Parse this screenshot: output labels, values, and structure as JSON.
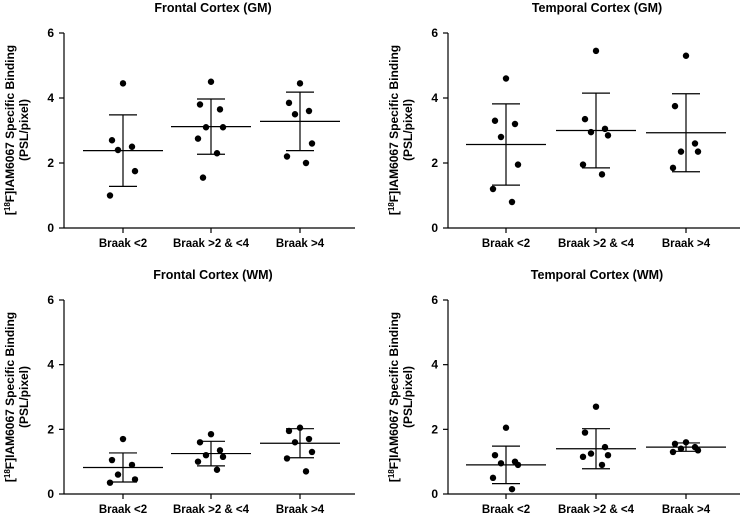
{
  "chart_data": [
    {
      "type": "scatter",
      "title": "Frontal Cortex (GM)",
      "ylabel": "[18F]IAM6067 Specific Binding",
      "ylabel_sup": "18",
      "ylabel_pre": "[",
      "ylabel_post": "F]IAM6067 Specific Binding",
      "ylabel_line2": "(PSL/pixel)",
      "ylim": [
        0,
        6
      ],
      "yticks": [
        "0",
        "2",
        "4",
        "6"
      ],
      "categories": [
        "Braak <2",
        "Braak >2 & <4",
        "Braak >4"
      ],
      "series": [
        {
          "values": [
            4.45,
            2.7,
            2.5,
            2.4,
            1.75,
            1.0
          ],
          "mean": 2.38,
          "sd": 1.1
        },
        {
          "values": [
            4.5,
            3.8,
            3.65,
            3.1,
            3.1,
            2.75,
            2.3,
            1.55
          ],
          "mean": 3.12,
          "sd": 0.85
        },
        {
          "values": [
            4.45,
            3.85,
            3.6,
            3.5,
            2.6,
            2.2,
            2.0
          ],
          "mean": 3.28,
          "sd": 0.9
        }
      ]
    },
    {
      "type": "scatter",
      "title": "Temporal Cortex (GM)",
      "ylabel": "[18F]IAM6067 Specific Binding",
      "ylabel_sup": "18",
      "ylabel_pre": "[",
      "ylabel_post": "F]IAM6067 Specific Binding",
      "ylabel_line2": "(PSL/pixel)",
      "ylim": [
        0,
        6
      ],
      "yticks": [
        "0",
        "2",
        "4",
        "6"
      ],
      "categories": [
        "Braak <2",
        "Braak >2 & <4",
        "Braak >4"
      ],
      "series": [
        {
          "values": [
            4.6,
            3.3,
            3.2,
            2.8,
            1.95,
            1.2,
            0.8
          ],
          "mean": 2.57,
          "sd": 1.25
        },
        {
          "values": [
            5.45,
            3.35,
            3.05,
            2.95,
            2.85,
            1.95,
            1.65
          ],
          "mean": 3.0,
          "sd": 1.15
        },
        {
          "values": [
            5.3,
            3.75,
            2.6,
            2.35,
            2.35,
            1.85
          ],
          "mean": 2.93,
          "sd": 1.2
        }
      ]
    },
    {
      "type": "scatter",
      "title": "Frontal Cortex (WM)",
      "ylabel": "[18F]IAM6067 Specific Binding",
      "ylabel_sup": "18",
      "ylabel_pre": "[",
      "ylabel_post": "F]IAM6067 Specific Binding",
      "ylabel_line2": "(PSL/pixel)",
      "ylim": [
        0,
        6
      ],
      "yticks": [
        "0",
        "2",
        "4",
        "6"
      ],
      "categories": [
        "Braak <2",
        "Braak >2 & <4",
        "Braak >4"
      ],
      "series": [
        {
          "values": [
            1.7,
            1.05,
            0.9,
            0.6,
            0.45,
            0.35
          ],
          "mean": 0.82,
          "sd": 0.45
        },
        {
          "values": [
            1.85,
            1.6,
            1.35,
            1.2,
            1.15,
            1.0,
            0.75
          ],
          "mean": 1.25,
          "sd": 0.38
        },
        {
          "values": [
            2.05,
            1.95,
            1.7,
            1.6,
            1.3,
            1.1,
            0.7
          ],
          "mean": 1.57,
          "sd": 0.45
        }
      ]
    },
    {
      "type": "scatter",
      "title": "Temporal Cortex (WM)",
      "ylabel": "[18F]IAM6067 Specific Binding",
      "ylabel_sup": "18",
      "ylabel_pre": "[",
      "ylabel_post": "F]IAM6067 Specific Binding",
      "ylabel_line2": "(PSL/pixel)",
      "ylim": [
        0,
        6
      ],
      "yticks": [
        "0",
        "2",
        "4",
        "6"
      ],
      "categories": [
        "Braak <2",
        "Braak >2 & <4",
        "Braak >4"
      ],
      "series": [
        {
          "values": [
            2.05,
            1.2,
            1.0,
            0.95,
            0.9,
            0.5,
            0.15
          ],
          "mean": 0.9,
          "sd": 0.58
        },
        {
          "values": [
            2.7,
            1.9,
            1.45,
            1.25,
            1.2,
            1.15,
            0.9
          ],
          "mean": 1.4,
          "sd": 0.62
        },
        {
          "values": [
            1.6,
            1.55,
            1.45,
            1.4,
            1.35,
            1.3
          ],
          "mean": 1.45,
          "sd": 0.13
        }
      ]
    }
  ]
}
